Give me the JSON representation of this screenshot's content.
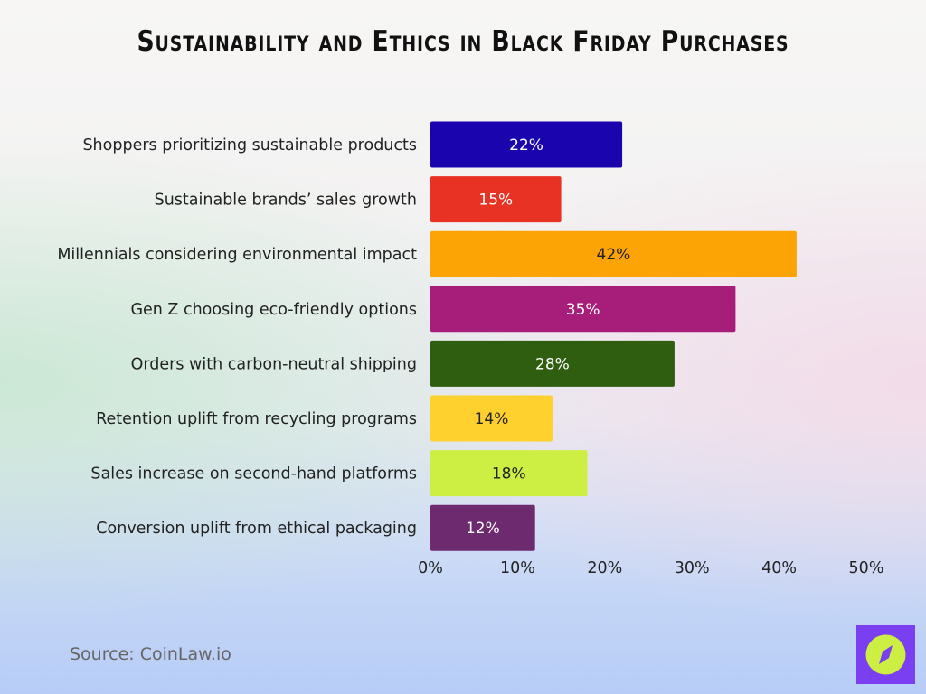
{
  "chart_data": {
    "type": "bar",
    "orientation": "horizontal",
    "title": "Sustainability and Ethics in Black Friday Purchases",
    "categories": [
      "Shoppers prioritizing sustainable products",
      "Sustainable brands’ sales growth",
      "Millennials considering environmental impact",
      "Gen Z choosing eco-friendly options",
      "Orders with carbon-neutral shipping",
      "Retention uplift from recycling programs",
      "Sales increase on second-hand platforms",
      "Conversion uplift from ethical packaging"
    ],
    "values": [
      22,
      15,
      42,
      35,
      28,
      14,
      18,
      12
    ],
    "data_labels": [
      "22%",
      "15%",
      "42%",
      "35%",
      "28%",
      "14%",
      "18%",
      "12%"
    ],
    "colors": [
      "#1a04ad",
      "#e83224",
      "#fca306",
      "#a61e79",
      "#305e10",
      "#fed12f",
      "#cdef43",
      "#6d2a6f"
    ],
    "label_colors": [
      "#ffffff",
      "#ffffff",
      "#222222",
      "#ffffff",
      "#ffffff",
      "#222222",
      "#222222",
      "#ffffff"
    ],
    "xlim": [
      0,
      50
    ],
    "x_ticks": [
      "0%",
      "10%",
      "20%",
      "30%",
      "40%",
      "50%"
    ],
    "xlabel": "",
    "ylabel": "",
    "grid": false,
    "legend": "none"
  },
  "source": "Source: CoinLaw.io",
  "logo": {
    "icon": "compass-icon",
    "background": "#7b3ff2",
    "circle": "#cdef43"
  }
}
